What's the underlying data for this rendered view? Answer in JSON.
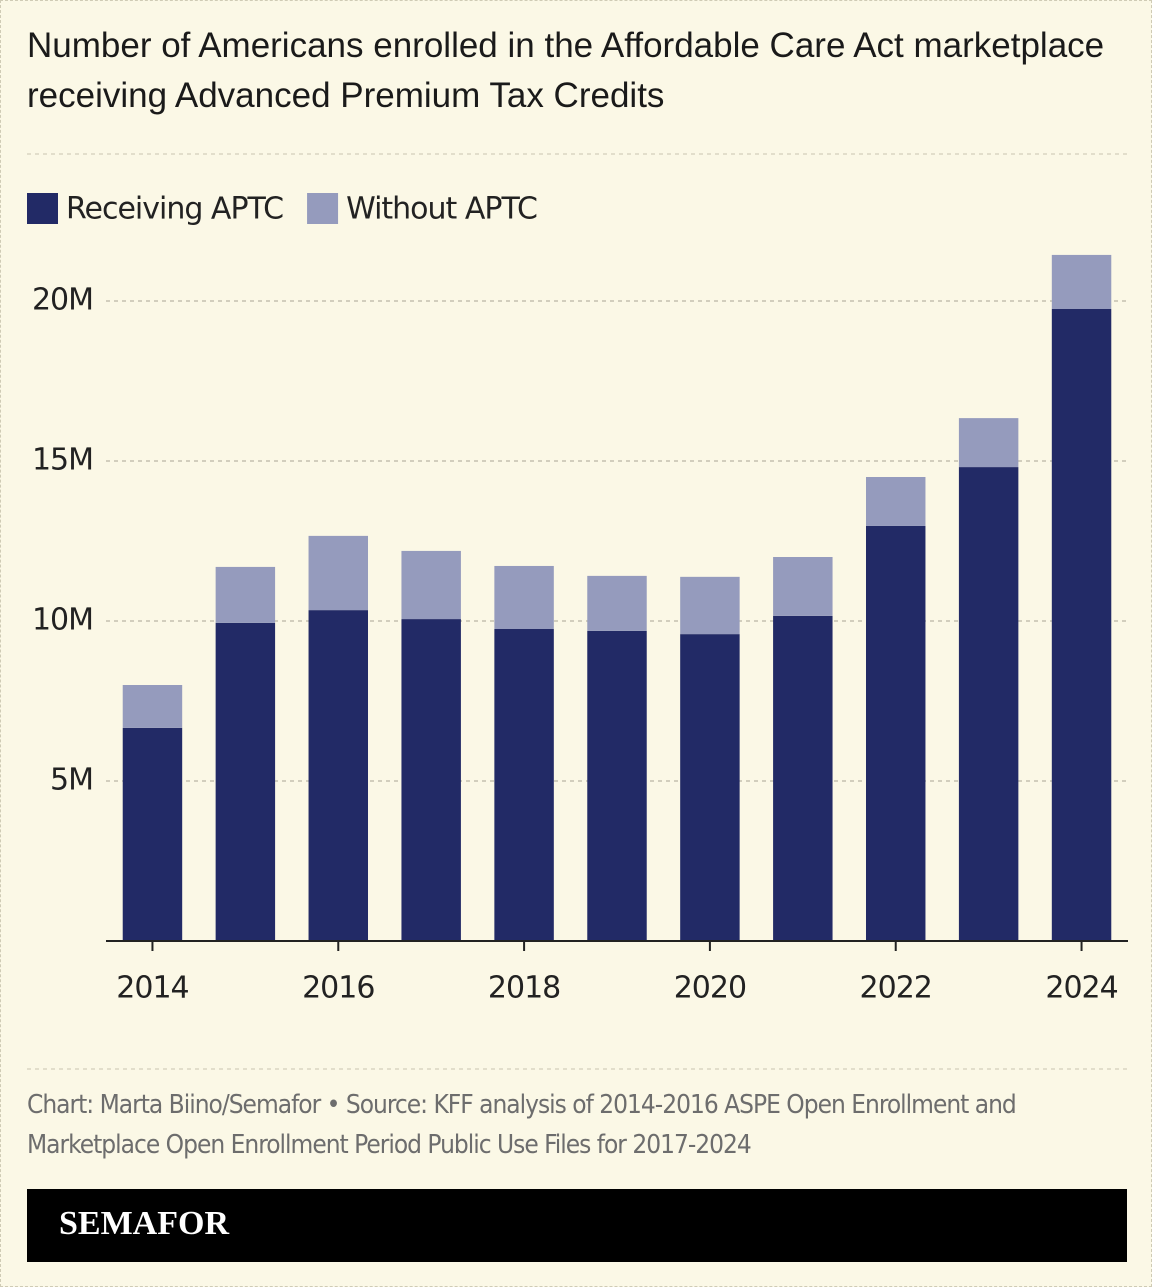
{
  "chart_data": {
    "type": "stacked_bar",
    "title": "Number of Americans enrolled in the Affordable Care Act marketplace receiving Advanced Premium Tax Credits",
    "x": [
      2014,
      2015,
      2016,
      2017,
      2018,
      2019,
      2020,
      2021,
      2022,
      2023,
      2024
    ],
    "xlim": [
      2013.5,
      2024.5
    ],
    "xticks": [
      2014,
      2016,
      2018,
      2020,
      2022,
      2024
    ],
    "series": [
      {
        "name": "Receiving APTC",
        "color": "#222a66",
        "values": [
          6.66,
          9.94,
          10.34,
          10.06,
          9.75,
          9.69,
          9.59,
          10.16,
          12.97,
          14.81,
          19.75
        ]
      },
      {
        "name": "Without APTC",
        "color": "#959bbd",
        "values": [
          1.34,
          1.75,
          2.32,
          2.13,
          1.97,
          1.72,
          1.79,
          1.84,
          1.53,
          1.53,
          1.69
        ]
      }
    ],
    "ylim": [
      0,
      22.5
    ],
    "yticks": [
      {
        "value": 5,
        "label": "5M"
      },
      {
        "value": 10,
        "label": "10M"
      },
      {
        "value": 15,
        "label": "15M"
      },
      {
        "value": 20,
        "label": "20M"
      }
    ],
    "grid": true,
    "legend": "top-left",
    "source": "Chart: Marta Biino/Semafor • Source: KFF analysis of 2014-2016 ASPE Open Enrollment and Marketplace Open Enrollment Period Public Use Files for 2017-2024",
    "brand": "SEMAFOR"
  }
}
